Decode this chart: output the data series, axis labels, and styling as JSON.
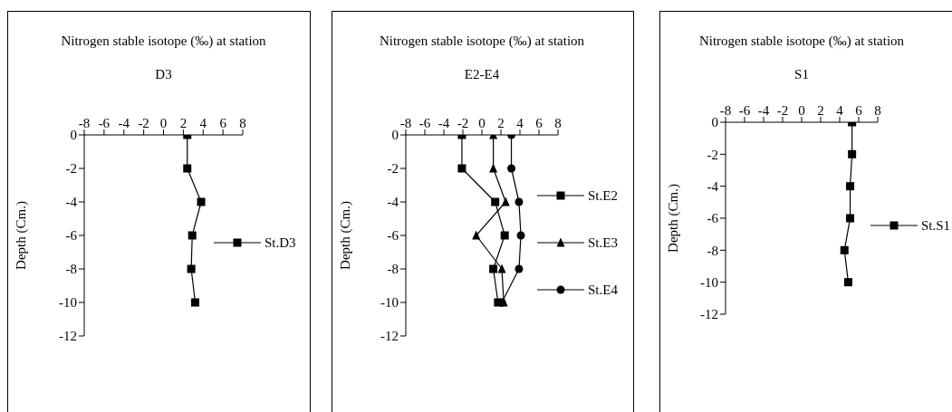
{
  "chart_data": [
    {
      "type": "line",
      "title": "Nitrogen stable isotope (‰) at station D3",
      "ylabel": "Depth (Cm.)",
      "xlim": [
        -8,
        8
      ],
      "xticks": [
        -8,
        -6,
        -4,
        -2,
        0,
        2,
        4,
        6,
        8
      ],
      "ylim": [
        -12,
        0
      ],
      "yticks": [
        0,
        -2,
        -4,
        -6,
        -8,
        -10,
        -12
      ],
      "legend": "right",
      "series": [
        {
          "name": "St.D3",
          "color": "#000000",
          "marker": "square",
          "x": [
            2.4,
            2.4,
            3.8,
            2.9,
            2.8,
            3.2
          ],
          "values": [
            0,
            -2,
            -4,
            -6,
            -8,
            -10
          ]
        }
      ]
    },
    {
      "type": "line",
      "title": "Nitrogen stable isotope (‰) at station E2-E4",
      "ylabel": "Depth (Cm.)",
      "xlim": [
        -8,
        8
      ],
      "xticks": [
        -8,
        -6,
        -4,
        -2,
        0,
        2,
        4,
        6,
        8
      ],
      "ylim": [
        -12,
        0
      ],
      "yticks": [
        0,
        -2,
        -4,
        -6,
        -8,
        -10,
        -12
      ],
      "legend": "right",
      "series": [
        {
          "name": "St.E2",
          "color": "#000000",
          "marker": "square",
          "x": [
            -2.1,
            -2.1,
            1.4,
            2.4,
            1.2,
            1.7
          ],
          "values": [
            0,
            -2,
            -4,
            -6,
            -8,
            -10
          ]
        },
        {
          "name": "St.E3",
          "color": "#000000",
          "marker": "triangle",
          "x": [
            1.2,
            1.2,
            2.5,
            -0.6,
            2.1,
            2.3
          ],
          "values": [
            0,
            -2,
            -4,
            -6,
            -8,
            -10
          ]
        },
        {
          "name": "St.E4",
          "color": "#000000",
          "marker": "circle",
          "x": [
            3.1,
            3.1,
            3.9,
            4.1,
            3.9,
            2.1
          ],
          "values": [
            0,
            -2,
            -4,
            -6,
            -8,
            -10
          ]
        }
      ]
    },
    {
      "type": "line",
      "title": "Nitrogen stable isotope (‰) at station S1",
      "ylabel": "Depth (Cm.)",
      "xlim": [
        -8,
        8
      ],
      "xticks": [
        -8,
        -6,
        -4,
        -2,
        0,
        2,
        4,
        6,
        8
      ],
      "ylim": [
        -12,
        0
      ],
      "yticks": [
        0,
        -2,
        -4,
        -6,
        -8,
        -10,
        -12
      ],
      "legend": "right",
      "series": [
        {
          "name": "St.S1",
          "color": "#000000",
          "marker": "square",
          "x": [
            5.3,
            5.3,
            5.1,
            5.1,
            4.5,
            4.9
          ],
          "values": [
            0,
            -2,
            -4,
            -6,
            -8,
            -10
          ]
        }
      ]
    }
  ]
}
